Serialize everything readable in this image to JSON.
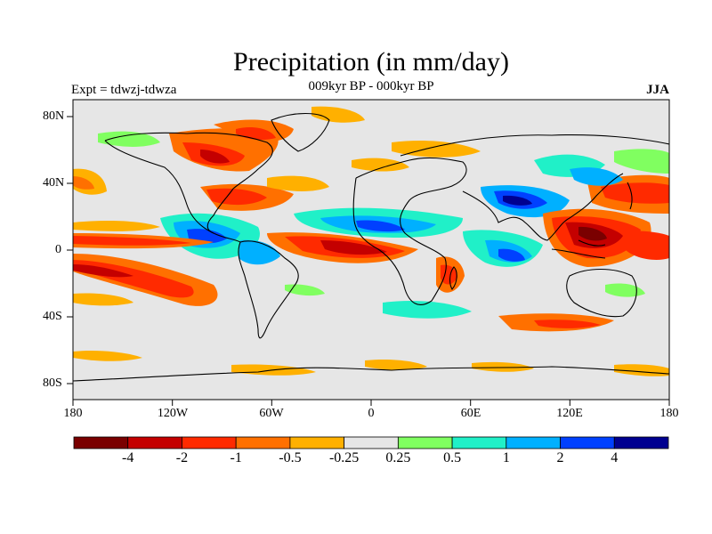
{
  "title": "Precipitation (in mm/day)",
  "subtitle": "009kyr BP - 000kyr BP",
  "left_label": "Expt = tdwzj-tdwza",
  "right_label": "JJA",
  "x_ticks": [
    "180",
    "120W",
    "60W",
    "0",
    "60E",
    "120E",
    "180"
  ],
  "y_ticks": [
    "80N",
    "40N",
    "0",
    "40S",
    "80S"
  ],
  "colorbar": {
    "colors": [
      "#7a0000",
      "#c40000",
      "#ff2a00",
      "#ff7000",
      "#ffb000",
      "#e6e6e6",
      "#80ff60",
      "#20f0c8",
      "#00b0ff",
      "#0040ff",
      "#000090"
    ],
    "labels": [
      "-4",
      "-2",
      "-1",
      "-0.5",
      "-0.25",
      "0.25",
      "0.5",
      "1",
      "2",
      "4"
    ]
  },
  "map_colors": {
    "ocean_background": "#e6e6e6",
    "coastline": "#000000"
  }
}
